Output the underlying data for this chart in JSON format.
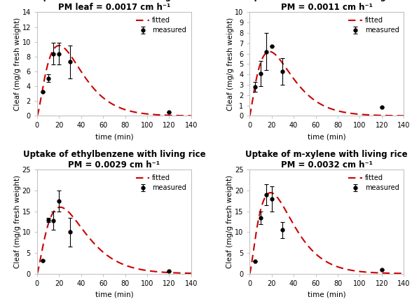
{
  "plots": [
    {
      "title": "Uptake of toluene with living rice",
      "subtitle": "PM leaf = 0.0017 cm h⁻¹",
      "ylabel": "Cleaf (mg/g fresh weight)",
      "xlabel": "time (min)",
      "ylim": [
        0,
        14
      ],
      "yticks": [
        0,
        2,
        4,
        6,
        8,
        10,
        12,
        14
      ],
      "xlim": [
        0,
        140
      ],
      "xticks": [
        0,
        20,
        40,
        60,
        80,
        100,
        120,
        140
      ],
      "measured_x": [
        5,
        10,
        15,
        20,
        30,
        120
      ],
      "measured_y": [
        3.3,
        5.1,
        8.4,
        8.4,
        7.3,
        0.55
      ],
      "measured_yerr": [
        0.0,
        0.5,
        1.5,
        1.5,
        2.2,
        0.0
      ],
      "fitted_peak": 9.5,
      "fitted_peak_x": 20,
      "fitted_n": 1.5
    },
    {
      "title": "Uptake of benzene with living rice",
      "subtitle": "PM = 0.0011 cm h⁻¹",
      "ylabel": "Cleaf (mg/g fresh weight)",
      "xlabel": "time (min)",
      "ylim": [
        0,
        10
      ],
      "yticks": [
        0,
        1,
        2,
        3,
        4,
        5,
        6,
        7,
        8,
        9,
        10
      ],
      "xlim": [
        0,
        140
      ],
      "xticks": [
        0,
        20,
        40,
        60,
        80,
        100,
        120,
        140
      ],
      "measured_x": [
        5,
        10,
        15,
        20,
        30,
        120
      ],
      "measured_y": [
        2.8,
        4.1,
        6.2,
        6.7,
        4.3,
        0.85
      ],
      "measured_yerr": [
        0.5,
        1.2,
        1.8,
        0.0,
        1.3,
        0.0
      ],
      "fitted_peak": 6.2,
      "fitted_peak_x": 18,
      "fitted_n": 1.3
    },
    {
      "title": "Uptake of ethylbenzene with living rice",
      "subtitle": "PM = 0.0029 cm h⁻¹",
      "ylabel": "Cleaf (mg/g fresh weight)",
      "xlabel": "time (min)",
      "ylim": [
        0,
        25
      ],
      "yticks": [
        0,
        5,
        10,
        15,
        20,
        25
      ],
      "xlim": [
        0,
        140
      ],
      "xticks": [
        0,
        20,
        40,
        60,
        80,
        100,
        120,
        140
      ],
      "measured_x": [
        5,
        10,
        15,
        20,
        30,
        120
      ],
      "measured_y": [
        3.2,
        13.0,
        12.7,
        17.5,
        10.0,
        0.55
      ],
      "measured_yerr": [
        0.0,
        0.5,
        2.2,
        2.5,
        3.5,
        0.0
      ],
      "fitted_peak": 16.0,
      "fitted_peak_x": 21,
      "fitted_n": 1.4
    },
    {
      "title": "Uptake of m-xylene with living rice",
      "subtitle": "PM = 0.0032 cm h⁻¹",
      "ylabel": "Cleaf (mg/g fresh weight)",
      "xlabel": "time (min)",
      "ylim": [
        0,
        25
      ],
      "yticks": [
        0,
        5,
        10,
        15,
        20,
        25
      ],
      "xlim": [
        0,
        140
      ],
      "xticks": [
        0,
        20,
        40,
        60,
        80,
        100,
        120,
        140
      ],
      "measured_x": [
        5,
        10,
        15,
        20,
        30,
        120
      ],
      "measured_y": [
        3.0,
        13.5,
        19.0,
        18.0,
        10.5,
        1.0
      ],
      "measured_yerr": [
        0.0,
        1.5,
        2.5,
        3.0,
        2.0,
        0.0
      ],
      "fitted_peak": 19.5,
      "fitted_peak_x": 19,
      "fitted_n": 1.4
    }
  ],
  "fitted_color": "#cc0000",
  "measured_color": "#000000",
  "background_color": "#ffffff",
  "title_fontsize": 8.5,
  "label_fontsize": 7.5,
  "tick_fontsize": 7,
  "legend_fontsize": 7
}
